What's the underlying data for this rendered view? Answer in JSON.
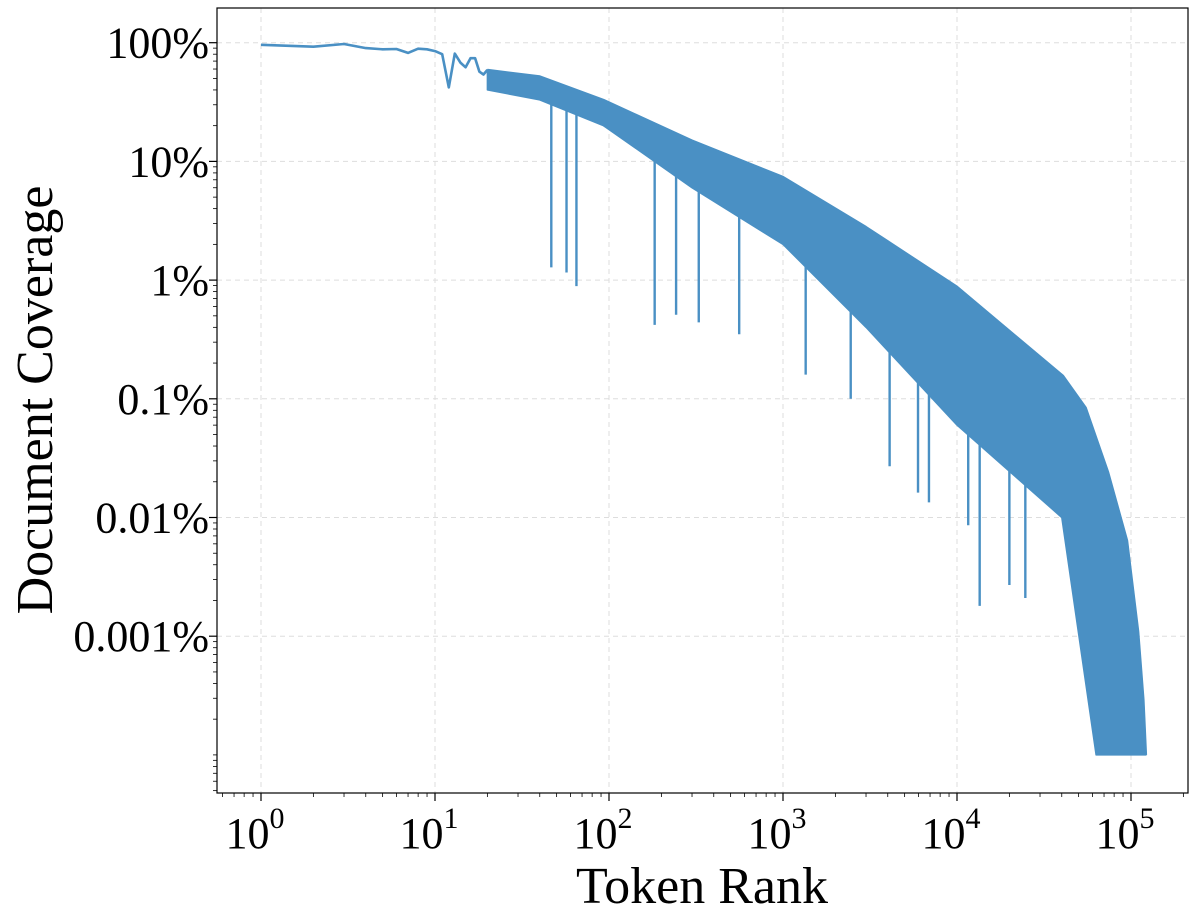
{
  "chart_data": {
    "type": "line",
    "title": "",
    "xlabel": "Token Rank",
    "ylabel": "Document Coverage",
    "x_scale": "log",
    "y_scale": "log",
    "xlim": [
      0.56,
      210000
    ],
    "ylim_percent": [
      5e-05,
      197
    ],
    "grid": true,
    "legend": "none",
    "series_color": "#4a90c4",
    "x_ticks": [
      {
        "value": 1,
        "base": "10",
        "exp": "0"
      },
      {
        "value": 10,
        "base": "10",
        "exp": "1"
      },
      {
        "value": 100,
        "base": "10",
        "exp": "2"
      },
      {
        "value": 1000,
        "base": "10",
        "exp": "3"
      },
      {
        "value": 10000,
        "base": "10",
        "exp": "4"
      },
      {
        "value": 100000,
        "base": "10",
        "exp": "5"
      }
    ],
    "y_ticks": [
      {
        "value": 100,
        "label": "100%"
      },
      {
        "value": 10,
        "label": "10%"
      },
      {
        "value": 1,
        "label": "1%"
      },
      {
        "value": 0.1,
        "label": "0.1%"
      },
      {
        "value": 0.01,
        "label": "0.01%"
      },
      {
        "value": 0.001,
        "label": "0.001%"
      }
    ],
    "head_points": [
      [
        1,
        96
      ],
      [
        2,
        92.5
      ],
      [
        3,
        97.5
      ],
      [
        4,
        90
      ],
      [
        5,
        88
      ],
      [
        6,
        88.5
      ],
      [
        7,
        82
      ],
      [
        8,
        89
      ],
      [
        9,
        88
      ],
      [
        10,
        85
      ],
      [
        11,
        80
      ],
      [
        12,
        42
      ],
      [
        13,
        81
      ],
      [
        14,
        68
      ],
      [
        15,
        62
      ],
      [
        16,
        74
      ],
      [
        17,
        74
      ],
      [
        18,
        57
      ],
      [
        19,
        54
      ],
      [
        20,
        59
      ]
    ],
    "upper_envelope": [
      [
        20,
        59
      ],
      [
        40,
        52
      ],
      [
        93,
        33
      ],
      [
        300,
        15
      ],
      [
        1000,
        7.4
      ],
      [
        3000,
        2.8
      ],
      [
        10000,
        0.88
      ],
      [
        40700,
        0.156
      ],
      [
        55000,
        0.084
      ],
      [
        74000,
        0.024
      ],
      [
        95000,
        0.0064
      ],
      [
        110000,
        0.0011
      ],
      [
        118000,
        0.00029
      ],
      [
        122000,
        0.0001
      ]
    ],
    "lower_band": [
      [
        20,
        40
      ],
      [
        40,
        33
      ],
      [
        93,
        20
      ],
      [
        300,
        6
      ],
      [
        1000,
        2
      ],
      [
        3000,
        0.4
      ],
      [
        10000,
        0.06
      ],
      [
        40000,
        0.01
      ],
      [
        63000,
        0.0001
      ],
      [
        122000,
        0.0001
      ]
    ],
    "deep_dips": [
      [
        46.6,
        1.28
      ],
      [
        57,
        1.16
      ],
      [
        65,
        0.89
      ],
      [
        183,
        0.42
      ],
      [
        243,
        0.51
      ],
      [
        328,
        0.44
      ],
      [
        560,
        0.35
      ],
      [
        1350,
        0.16
      ],
      [
        2450,
        0.1
      ],
      [
        4100,
        0.027
      ],
      [
        5970,
        0.0162
      ],
      [
        6900,
        0.0134
      ],
      [
        11600,
        0.0086
      ],
      [
        13500,
        0.0018
      ],
      [
        20000,
        0.0027
      ],
      [
        24700,
        0.0021
      ]
    ]
  }
}
